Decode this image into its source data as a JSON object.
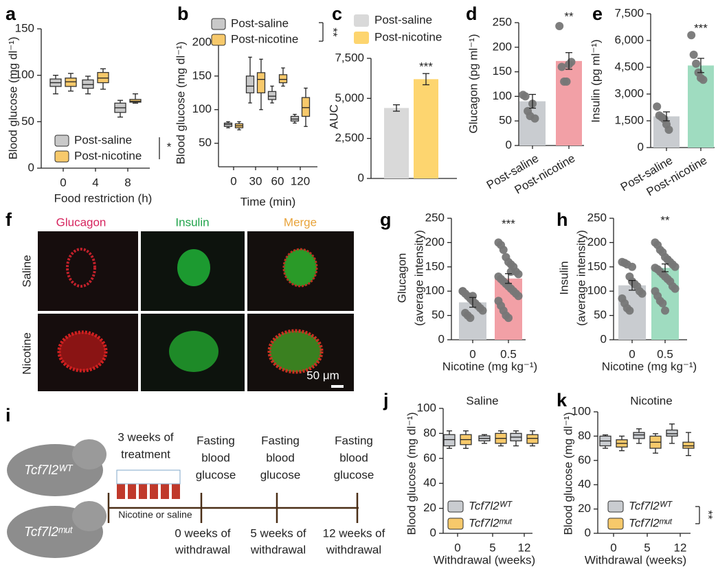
{
  "chart_data": [
    {
      "type": "box",
      "panel": "a",
      "ylabel": "Blood glucose (mg dl⁻¹)",
      "xlabel": "Food restriction (h)",
      "categories": [
        "0",
        "4",
        "8"
      ],
      "ylim": [
        0,
        150
      ],
      "yticks": [
        0,
        50,
        100,
        150
      ],
      "significance": "*",
      "series": [
        {
          "name": "Post-saline",
          "color": "#c9c9c9",
          "boxes": [
            [
              80,
              88,
              92,
              96,
              100
            ],
            [
              80,
              86,
              90,
              95,
              99
            ],
            [
              55,
              60,
              65,
              70,
              73
            ]
          ]
        },
        {
          "name": "Post-nicotine",
          "color": "#f7c96b",
          "boxes": [
            [
              83,
              88,
              93,
              97,
              102
            ],
            [
              85,
              92,
              97,
              103,
              107
            ],
            [
              70,
              71,
              72,
              74,
              80
            ]
          ]
        }
      ]
    },
    {
      "type": "box",
      "panel": "b",
      "ylabel": "Blood glucose (mg dl⁻¹)",
      "xlabel": "Time (min)",
      "categories": [
        "0",
        "30",
        "60",
        "120"
      ],
      "ylim": [
        15,
        210
      ],
      "yticks": [
        50,
        100,
        150,
        200
      ],
      "significance": "**",
      "series": [
        {
          "name": "Post-saline",
          "color": "#c9c9c9",
          "boxes": [
            [
              73,
              75,
              78,
              80,
              82
            ],
            [
              110,
              125,
              135,
              150,
              178
            ],
            [
              110,
              115,
              120,
              127,
              135
            ],
            [
              80,
              83,
              86,
              90,
              93
            ]
          ]
        },
        {
          "name": "Post-nicotine",
          "color": "#f7c96b",
          "boxes": [
            [
              70,
              73,
              76,
              79,
              82
            ],
            [
              100,
              125,
              145,
              155,
              175
            ],
            [
              135,
              140,
              145,
              152,
              162
            ],
            [
              75,
              90,
              103,
              118,
              132
            ]
          ]
        }
      ]
    },
    {
      "type": "bar",
      "panel": "c",
      "ylabel": "AUC",
      "ylim": [
        0,
        7500
      ],
      "yticks": [
        0,
        {
          "value": 2500,
          "label": "2,500"
        },
        {
          "value": 5000,
          "label": "5,000"
        },
        {
          "value": 7500,
          "label": "7,500"
        }
      ],
      "significance": "***",
      "series": [
        {
          "name": "Post-saline",
          "color": "#d9d9d9",
          "values": [
            4400
          ],
          "errors": [
            200
          ]
        },
        {
          "name": "Post-nicotine",
          "color": "#fdd56f",
          "values": [
            6200
          ],
          "errors": [
            350
          ]
        }
      ]
    },
    {
      "type": "bar",
      "panel": "d",
      "ylabel": "Glucagon (pg ml⁻¹)",
      "ylim": [
        0,
        250
      ],
      "yticks": [
        0,
        50,
        100,
        150,
        200,
        250
      ],
      "significance": "**",
      "categories": [
        "Post-saline",
        "Post-nicotine"
      ],
      "values": [
        90,
        172
      ],
      "errors": [
        14,
        17
      ],
      "colors": [
        "#c9ccd0",
        "#f2a0a6"
      ],
      "points": [
        [
          103,
          100,
          70,
          60,
          85,
          55
        ],
        [
          243,
          160,
          130,
          130,
          165,
          170
        ]
      ]
    },
    {
      "type": "bar",
      "panel": "e",
      "ylabel": "Insulin (pg ml⁻¹)",
      "ylim": [
        0,
        7500
      ],
      "yticks": [
        0,
        {
          "value": 1500,
          "label": "1,500"
        },
        {
          "value": 3000,
          "label": "3,000"
        },
        {
          "value": 4500,
          "label": "4,500"
        },
        {
          "value": 6000,
          "label": "6,000"
        },
        {
          "value": 7500,
          "label": "7,500"
        }
      ],
      "significance": "***",
      "categories": [
        "Post-saline",
        "Post-nicotine"
      ],
      "values": [
        1750,
        4600
      ],
      "errors": [
        250,
        400
      ],
      "colors": [
        "#c9ccd0",
        "#9fdcc0"
      ],
      "points": [
        [
          2300,
          1800,
          1700,
          1600,
          1300,
          1000
        ],
        [
          6300,
          5200,
          4700,
          4200,
          3900,
          3800
        ]
      ]
    },
    {
      "type": "bar",
      "panel": "g",
      "ylabel": [
        "Glucagon",
        "(average intensity)"
      ],
      "xlabel": "Nicotine (mg kg⁻¹)",
      "ylim": [
        0,
        250
      ],
      "yticks": [
        0,
        50,
        100,
        150,
        200,
        250
      ],
      "significance": "***",
      "categories": [
        "0",
        "0.5"
      ],
      "values": [
        77,
        126
      ],
      "errors": [
        10,
        10
      ],
      "colors": [
        "#c9ccd0",
        "#f2a0a6"
      ],
      "points": [
        [
          100,
          95,
          90,
          85,
          80,
          75,
          70,
          65,
          60,
          100,
          55,
          50,
          45,
          90
        ],
        [
          200,
          195,
          185,
          170,
          160,
          155,
          150,
          140,
          135,
          130,
          125,
          120,
          115,
          110,
          105,
          100,
          95,
          90,
          80,
          70,
          60,
          50,
          45,
          140
        ]
      ]
    },
    {
      "type": "bar",
      "panel": "h",
      "ylabel": [
        "Insulin",
        "(average intensity)"
      ],
      "xlabel": "Nicotine (mg kg⁻¹)",
      "ylim": [
        0,
        250
      ],
      "yticks": [
        0,
        50,
        100,
        150,
        200,
        250
      ],
      "significance": "**",
      "categories": [
        "0",
        "0.5"
      ],
      "values": [
        112,
        148
      ],
      "errors": [
        10,
        8
      ],
      "colors": [
        "#c9ccd0",
        "#9fdcc0"
      ],
      "points": [
        [
          160,
          158,
          155,
          130,
          120,
          115,
          110,
          100,
          95,
          85,
          75,
          65,
          60,
          150
        ],
        [
          200,
          195,
          185,
          180,
          170,
          165,
          160,
          155,
          150,
          148,
          145,
          140,
          135,
          130,
          125,
          120,
          110,
          105,
          100,
          90,
          80,
          75,
          60,
          165
        ]
      ]
    },
    {
      "type": "box",
      "panel": "j",
      "title": "Saline",
      "ylabel": "Blood glucose (mg dl⁻¹)",
      "xlabel": "Withdrawal (weeks)",
      "categories": [
        "0",
        "5",
        "12"
      ],
      "ylim": [
        0,
        100
      ],
      "yticks": [
        0,
        20,
        40,
        60,
        80,
        100
      ],
      "series": [
        {
          "name": "Tcf7l2ᵂᵀ",
          "color": "#c9ccd0",
          "boxes": [
            [
              68,
              70,
              75,
              79,
              82
            ],
            [
              72,
              74,
              76,
              78,
              79
            ],
            [
              70,
              74,
              77,
              80,
              82
            ]
          ]
        },
        {
          "name": "Tcf7l2ᵐᵘᵗ",
          "color": "#f7c96b",
          "boxes": [
            [
              68,
              71,
              75,
              79,
              82
            ],
            [
              70,
              72,
              76,
              80,
              82
            ],
            [
              70,
              72,
              76,
              79,
              82
            ]
          ]
        }
      ]
    },
    {
      "type": "box",
      "panel": "k",
      "title": "Nicotine",
      "ylabel": "Blood glucose (mg dl⁻¹)",
      "xlabel": "Withdrawal (weeks)",
      "categories": [
        "0",
        "5",
        "12"
      ],
      "ylim": [
        0,
        100
      ],
      "yticks": [
        0,
        20,
        40,
        60,
        80,
        100
      ],
      "significance": "**",
      "series": [
        {
          "name": "Tcf7l2ᵂᵀ",
          "color": "#c9ccd0",
          "boxes": [
            [
              70,
              72,
              76,
              80,
              81
            ],
            [
              74,
              78,
              81,
              83,
              86
            ],
            [
              74,
              80,
              82,
              85,
              90
            ]
          ]
        },
        {
          "name": "Tcf7l2ᵐᵘᵗ",
          "color": "#f7c96b",
          "boxes": [
            [
              68,
              71,
              74,
              77,
              80
            ],
            [
              66,
              70,
              75,
              80,
              82
            ],
            [
              64,
              70,
              72,
              75,
              83
            ]
          ]
        }
      ]
    }
  ],
  "panel_f": {
    "panel": "f",
    "columns": [
      "Glucagon",
      "Insulin",
      "Merge"
    ],
    "rows": [
      "Saline",
      "Nicotine"
    ],
    "scale_bar": "50 μm"
  },
  "panel_i": {
    "panel": "i",
    "treatment": [
      "3 weeks of",
      "treatment"
    ],
    "steps": [
      [
        "Fasting",
        "blood",
        "glucose"
      ],
      [
        "Fasting",
        "blood",
        "glucose"
      ],
      [
        "Fasting",
        "blood",
        "glucose"
      ]
    ],
    "injection": "Nicotine or saline",
    "timepoints": [
      [
        "0 weeks of",
        "withdrawal"
      ],
      [
        "5 weeks of",
        "withdrawal"
      ],
      [
        "12 weeks of",
        "withdrawal"
      ]
    ],
    "genotypes": [
      "Tcf7l2ᵂᵀ",
      "Tcf7l2ᵐᵘᵗ"
    ]
  }
}
